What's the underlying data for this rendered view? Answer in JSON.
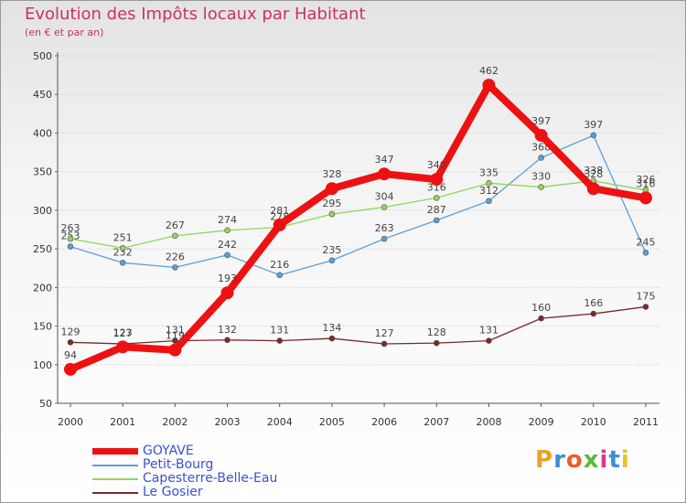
{
  "chart_data": {
    "type": "line",
    "title": "Evolution des Impôts locaux par Habitant",
    "subtitle": "(en € et par an)",
    "categories": [
      "2000",
      "2001",
      "2002",
      "2003",
      "2004",
      "2005",
      "2006",
      "2007",
      "2008",
      "2009",
      "2010",
      "2011"
    ],
    "ylim": [
      50,
      500
    ],
    "yticks": [
      50,
      100,
      150,
      200,
      250,
      300,
      350,
      400,
      450,
      500
    ],
    "ytick_labels": [
      "50",
      "100",
      "150",
      "200",
      "250",
      "300",
      "350",
      "400",
      "450",
      "500"
    ],
    "series": [
      {
        "name": "Petit-Bourg",
        "color": "#5aa0d8",
        "values": [
          253,
          232,
          226,
          242,
          216,
          235,
          263,
          287,
          312,
          368,
          397,
          245
        ],
        "labels": [
          "253",
          "232",
          "226",
          "242",
          "216",
          "235",
          "263",
          "287",
          "312",
          "368",
          "397",
          "245"
        ]
      },
      {
        "name": "Capesterre-Belle-Eau",
        "color": "#8ed65a",
        "values": [
          263,
          251,
          267,
          274,
          278,
          295,
          304,
          316,
          335,
          330,
          338,
          326
        ],
        "labels": [
          "263",
          "251",
          "267",
          "274",
          "278",
          "295",
          "304",
          "316",
          "335",
          "330",
          "338",
          "326"
        ]
      },
      {
        "name": "Le Gosier",
        "color": "#7a2a2a",
        "values": [
          129,
          127,
          131,
          132,
          131,
          134,
          127,
          128,
          131,
          160,
          166,
          175
        ],
        "labels": [
          "129",
          "127",
          "131",
          "132",
          "131",
          "134",
          "127",
          "128",
          "131",
          "160",
          "166",
          "175"
        ]
      },
      {
        "name": "GOYAVE",
        "color": "#ee1111",
        "values": [
          94,
          123,
          119,
          193,
          281,
          328,
          347,
          340,
          462,
          397,
          328,
          316
        ],
        "labels": [
          "94",
          "123",
          "119",
          "193",
          "281",
          "328",
          "347",
          "340",
          "462",
          "397",
          "328",
          "316"
        ]
      }
    ],
    "legend_order": [
      "GOYAVE",
      "Petit-Bourg",
      "Capesterre-Belle-Eau",
      "Le Gosier"
    ],
    "legend_position": "bottom-left"
  },
  "logo_text": [
    "P",
    "r",
    "o",
    "x",
    "i",
    "t",
    "i"
  ]
}
